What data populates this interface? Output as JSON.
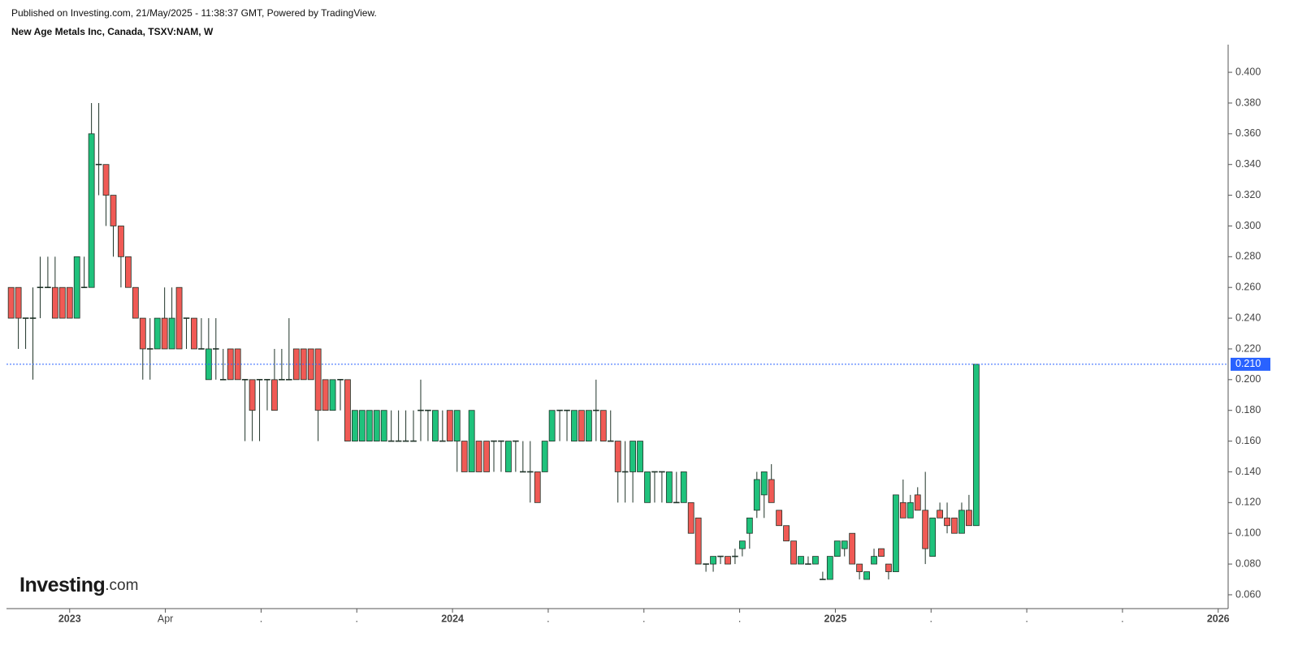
{
  "header": {
    "published": "Published on Investing.com, 21/May/2025 - 11:38:37 GMT, Powered by TradingView.",
    "title": "New Age Metals Inc, Canada, TSXV:NAM, W"
  },
  "logo": {
    "brand": "Investing",
    "suffix": ".com"
  },
  "chart_data": {
    "type": "candlestick",
    "x": [
      2022.847,
      2022.866,
      2022.885,
      2022.904,
      2022.923,
      2022.943,
      2022.962,
      2022.981,
      2023.0,
      2023.019,
      2023.038,
      2023.057,
      2023.076,
      2023.095,
      2023.114,
      2023.134,
      2023.153,
      2023.172,
      2023.191,
      2023.21,
      2023.229,
      2023.248,
      2023.267,
      2023.286,
      2023.305,
      2023.325,
      2023.344,
      2023.363,
      2023.382,
      2023.401,
      2023.42,
      2023.439,
      2023.458,
      2023.477,
      2023.496,
      2023.516,
      2023.535,
      2023.554,
      2023.573,
      2023.592,
      2023.611,
      2023.63,
      2023.649,
      2023.668,
      2023.687,
      2023.707,
      2023.726,
      2023.745,
      2023.764,
      2023.783,
      2023.802,
      2023.821,
      2023.84,
      2023.859,
      2023.878,
      2023.898,
      2023.917,
      2023.936,
      2023.955,
      2023.974,
      2023.993,
      2024.012,
      2024.031,
      2024.05,
      2024.069,
      2024.089,
      2024.108,
      2024.127,
      2024.146,
      2024.165,
      2024.184,
      2024.203,
      2024.222,
      2024.241,
      2024.26,
      2024.28,
      2024.299,
      2024.318,
      2024.337,
      2024.356,
      2024.375,
      2024.394,
      2024.413,
      2024.432,
      2024.451,
      2024.471,
      2024.49,
      2024.509,
      2024.528,
      2024.547,
      2024.566,
      2024.585,
      2024.604,
      2024.623,
      2024.642,
      2024.662,
      2024.681,
      2024.7,
      2024.719,
      2024.738,
      2024.757,
      2024.776,
      2024.795,
      2024.814,
      2024.833,
      2024.853,
      2024.872,
      2024.891,
      2024.91,
      2024.929,
      2024.948,
      2024.967,
      2024.986,
      2025.005,
      2025.024,
      2025.044,
      2025.063,
      2025.082,
      2025.101,
      2025.12,
      2025.139,
      2025.158,
      2025.177,
      2025.196,
      2025.215,
      2025.235,
      2025.254,
      2025.273,
      2025.292,
      2025.311,
      2025.33,
      2025.349,
      2025.368
    ],
    "open": [
      0.26,
      0.26,
      0.24,
      0.24,
      0.26,
      0.26,
      0.26,
      0.26,
      0.26,
      0.24,
      0.26,
      0.26,
      0.34,
      0.34,
      0.32,
      0.3,
      0.28,
      0.26,
      0.24,
      0.22,
      0.22,
      0.24,
      0.22,
      0.26,
      0.24,
      0.24,
      0.22,
      0.2,
      0.22,
      0.2,
      0.22,
      0.22,
      0.2,
      0.2,
      0.2,
      0.2,
      0.2,
      0.2,
      0.2,
      0.22,
      0.22,
      0.22,
      0.22,
      0.2,
      0.18,
      0.2,
      0.2,
      0.16,
      0.16,
      0.16,
      0.16,
      0.16,
      0.16,
      0.16,
      0.16,
      0.16,
      0.18,
      0.18,
      0.16,
      0.16,
      0.18,
      0.16,
      0.16,
      0.14,
      0.16,
      0.16,
      0.16,
      0.16,
      0.14,
      0.16,
      0.14,
      0.14,
      0.14,
      0.14,
      0.16,
      0.18,
      0.18,
      0.16,
      0.18,
      0.16,
      0.18,
      0.18,
      0.16,
      0.16,
      0.14,
      0.14,
      0.14,
      0.12,
      0.14,
      0.14,
      0.12,
      0.12,
      0.12,
      0.12,
      0.11,
      0.08,
      0.08,
      0.085,
      0.085,
      0.085,
      0.09,
      0.1,
      0.115,
      0.125,
      0.135,
      0.115,
      0.105,
      0.095,
      0.08,
      0.08,
      0.08,
      0.07,
      0.07,
      0.085,
      0.09,
      0.1,
      0.08,
      0.07,
      0.08,
      0.09,
      0.08,
      0.075,
      0.12,
      0.11,
      0.125,
      0.115,
      0.085,
      0.115,
      0.11,
      0.11,
      0.1,
      0.115,
      0.105
    ],
    "high": [
      0.26,
      0.26,
      0.24,
      0.26,
      0.28,
      0.28,
      0.28,
      0.26,
      0.26,
      0.28,
      0.28,
      0.38,
      0.38,
      0.34,
      0.32,
      0.3,
      0.28,
      0.26,
      0.24,
      0.24,
      0.24,
      0.26,
      0.26,
      0.26,
      0.24,
      0.24,
      0.24,
      0.24,
      0.24,
      0.22,
      0.22,
      0.22,
      0.2,
      0.2,
      0.2,
      0.2,
      0.22,
      0.22,
      0.24,
      0.22,
      0.22,
      0.22,
      0.22,
      0.2,
      0.2,
      0.2,
      0.2,
      0.18,
      0.18,
      0.18,
      0.18,
      0.18,
      0.18,
      0.18,
      0.18,
      0.18,
      0.2,
      0.18,
      0.18,
      0.18,
      0.18,
      0.18,
      0.16,
      0.18,
      0.16,
      0.16,
      0.16,
      0.16,
      0.16,
      0.16,
      0.16,
      0.16,
      0.14,
      0.16,
      0.18,
      0.18,
      0.18,
      0.18,
      0.18,
      0.18,
      0.2,
      0.18,
      0.18,
      0.16,
      0.16,
      0.16,
      0.16,
      0.14,
      0.14,
      0.14,
      0.14,
      0.14,
      0.14,
      0.12,
      0.11,
      0.08,
      0.085,
      0.085,
      0.085,
      0.09,
      0.095,
      0.11,
      0.14,
      0.14,
      0.145,
      0.115,
      0.105,
      0.095,
      0.085,
      0.085,
      0.085,
      0.075,
      0.085,
      0.095,
      0.095,
      0.1,
      0.08,
      0.075,
      0.09,
      0.09,
      0.08,
      0.125,
      0.135,
      0.125,
      0.13,
      0.14,
      0.11,
      0.12,
      0.12,
      0.11,
      0.12,
      0.125,
      0.21
    ],
    "low": [
      0.24,
      0.22,
      0.22,
      0.2,
      0.24,
      0.26,
      0.24,
      0.24,
      0.24,
      0.24,
      0.26,
      0.26,
      0.32,
      0.3,
      0.28,
      0.26,
      0.26,
      0.24,
      0.2,
      0.2,
      0.22,
      0.22,
      0.22,
      0.22,
      0.22,
      0.22,
      0.22,
      0.2,
      0.2,
      0.2,
      0.2,
      0.2,
      0.16,
      0.16,
      0.16,
      0.18,
      0.18,
      0.2,
      0.2,
      0.2,
      0.2,
      0.2,
      0.16,
      0.18,
      0.18,
      0.18,
      0.16,
      0.16,
      0.16,
      0.16,
      0.16,
      0.16,
      0.16,
      0.16,
      0.16,
      0.16,
      0.16,
      0.16,
      0.16,
      0.16,
      0.16,
      0.14,
      0.14,
      0.14,
      0.14,
      0.14,
      0.14,
      0.14,
      0.14,
      0.14,
      0.14,
      0.12,
      0.12,
      0.14,
      0.16,
      0.16,
      0.16,
      0.16,
      0.16,
      0.16,
      0.16,
      0.16,
      0.16,
      0.12,
      0.12,
      0.12,
      0.14,
      0.12,
      0.12,
      0.12,
      0.12,
      0.12,
      0.12,
      0.1,
      0.08,
      0.075,
      0.075,
      0.08,
      0.08,
      0.08,
      0.085,
      0.09,
      0.11,
      0.11,
      0.12,
      0.105,
      0.095,
      0.08,
      0.08,
      0.08,
      0.08,
      0.07,
      0.07,
      0.085,
      0.085,
      0.08,
      0.07,
      0.07,
      0.08,
      0.085,
      0.07,
      0.075,
      0.11,
      0.11,
      0.115,
      0.08,
      0.085,
      0.11,
      0.1,
      0.1,
      0.1,
      0.105,
      0.105
    ],
    "close": [
      0.24,
      0.24,
      0.24,
      0.24,
      0.26,
      0.26,
      0.24,
      0.24,
      0.24,
      0.28,
      0.26,
      0.36,
      0.34,
      0.32,
      0.3,
      0.28,
      0.26,
      0.24,
      0.22,
      0.22,
      0.24,
      0.22,
      0.24,
      0.22,
      0.24,
      0.22,
      0.22,
      0.22,
      0.22,
      0.2,
      0.2,
      0.2,
      0.2,
      0.18,
      0.2,
      0.2,
      0.18,
      0.2,
      0.2,
      0.2,
      0.2,
      0.2,
      0.18,
      0.18,
      0.2,
      0.2,
      0.16,
      0.18,
      0.18,
      0.18,
      0.18,
      0.18,
      0.16,
      0.16,
      0.16,
      0.16,
      0.18,
      0.18,
      0.18,
      0.16,
      0.16,
      0.18,
      0.14,
      0.18,
      0.14,
      0.14,
      0.16,
      0.16,
      0.16,
      0.16,
      0.14,
      0.14,
      0.12,
      0.16,
      0.18,
      0.18,
      0.18,
      0.18,
      0.16,
      0.18,
      0.18,
      0.16,
      0.16,
      0.14,
      0.14,
      0.16,
      0.16,
      0.14,
      0.14,
      0.14,
      0.14,
      0.12,
      0.14,
      0.1,
      0.08,
      0.08,
      0.085,
      0.085,
      0.08,
      0.085,
      0.095,
      0.11,
      0.135,
      0.14,
      0.12,
      0.105,
      0.095,
      0.08,
      0.085,
      0.08,
      0.085,
      0.07,
      0.085,
      0.095,
      0.095,
      0.08,
      0.075,
      0.075,
      0.085,
      0.085,
      0.075,
      0.125,
      0.11,
      0.12,
      0.115,
      0.09,
      0.11,
      0.11,
      0.105,
      0.1,
      0.115,
      0.105,
      0.21
    ],
    "up_color": "#1fc27c",
    "down_color": "#f05a55",
    "outline_color": "#1f3328",
    "xlim": [
      2022.835,
      2026.026
    ],
    "xticks": [
      {
        "value": 2023,
        "label": "2023"
      },
      {
        "value": 2023.25,
        "label": "Apr"
      },
      {
        "value": 2023.5,
        "label": "."
      },
      {
        "value": 2023.75,
        "label": "."
      },
      {
        "value": 2024,
        "label": "2024"
      },
      {
        "value": 2024.25,
        "label": "."
      },
      {
        "value": 2024.5,
        "label": "."
      },
      {
        "value": 2024.75,
        "label": "."
      },
      {
        "value": 2025,
        "label": "2025"
      },
      {
        "value": 2025.25,
        "label": "."
      },
      {
        "value": 2025.5,
        "label": "."
      },
      {
        "value": 2025.75,
        "label": "."
      },
      {
        "value": 2026,
        "label": "2026"
      }
    ],
    "ylim": [
      0.051,
      0.418
    ],
    "yticks": [
      {
        "value": 0.06,
        "label": "0.060"
      },
      {
        "value": 0.08,
        "label": "0.080"
      },
      {
        "value": 0.1,
        "label": "0.100"
      },
      {
        "value": 0.12,
        "label": "0.120"
      },
      {
        "value": 0.14,
        "label": "0.140"
      },
      {
        "value": 0.16,
        "label": "0.160"
      },
      {
        "value": 0.18,
        "label": "0.180"
      },
      {
        "value": 0.2,
        "label": "0.200"
      },
      {
        "value": 0.22,
        "label": "0.220"
      },
      {
        "value": 0.24,
        "label": "0.240"
      },
      {
        "value": 0.26,
        "label": "0.260"
      },
      {
        "value": 0.28,
        "label": "0.280"
      },
      {
        "value": 0.3,
        "label": "0.300"
      },
      {
        "value": 0.32,
        "label": "0.320"
      },
      {
        "value": 0.34,
        "label": "0.340"
      },
      {
        "value": 0.36,
        "label": "0.360"
      },
      {
        "value": 0.38,
        "label": "0.380"
      },
      {
        "value": 0.4,
        "label": "0.400"
      }
    ],
    "last_price": {
      "value": 0.21,
      "label": "0.210"
    },
    "last_price_color": "#2962ff"
  }
}
